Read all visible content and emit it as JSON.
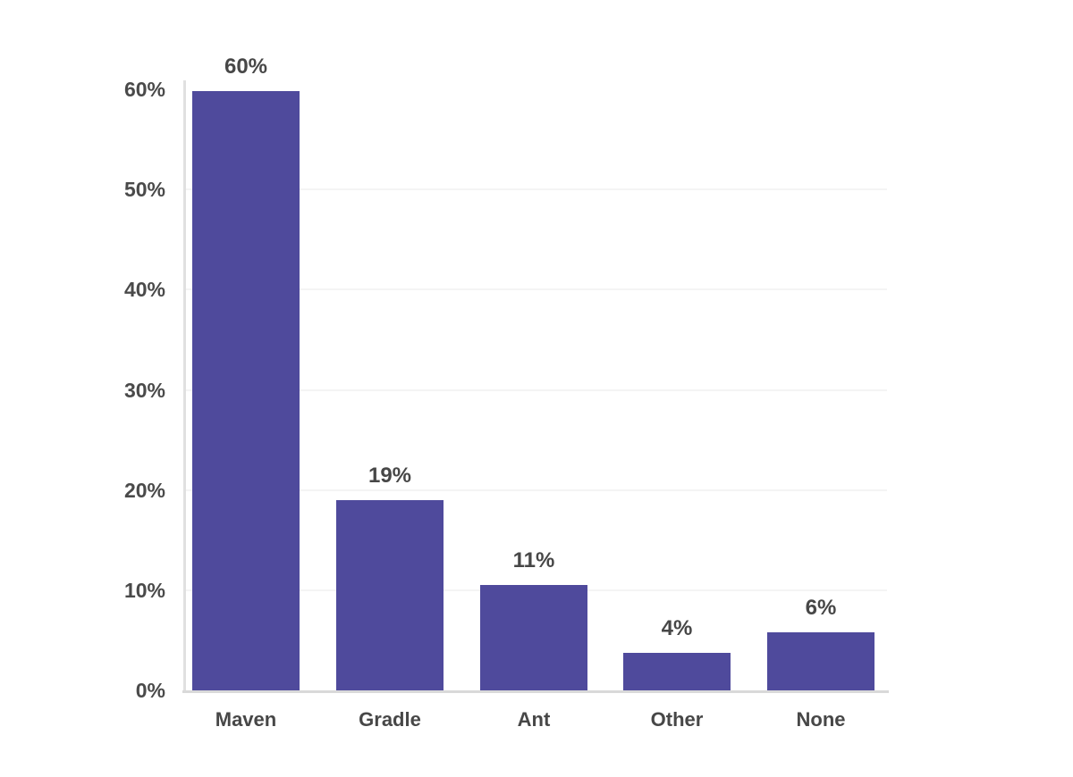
{
  "page": {
    "background_color": "#ffffff"
  },
  "chart_data": {
    "type": "bar",
    "title": "",
    "xlabel": "",
    "ylabel": "",
    "categories": [
      "Maven",
      "Gradle",
      "Ant",
      "Other",
      "None"
    ],
    "values": [
      60,
      19,
      11,
      4,
      6
    ],
    "value_labels": [
      "60%",
      "19%",
      "11%",
      "4%",
      "6%"
    ],
    "bar_rendered_heights_pct": [
      59.8,
      19,
      10.5,
      3.7,
      5.8
    ],
    "ylim": [
      0,
      60
    ],
    "y_ticks": [
      {
        "value": 0,
        "label": "0%"
      },
      {
        "value": 10,
        "label": "10%"
      },
      {
        "value": 20,
        "label": "20%"
      },
      {
        "value": 30,
        "label": "30%"
      },
      {
        "value": 40,
        "label": "40%"
      },
      {
        "value": 50,
        "label": "50%"
      },
      {
        "value": 60,
        "label": "60%"
      }
    ],
    "gridlines": {
      "horizontal_at": [
        10,
        20,
        30,
        40,
        50
      ],
      "vertical": false
    },
    "legend": {
      "visible": false
    },
    "colors": {
      "bar": "#4f4a9c",
      "tick_label": "#4a4a4a",
      "data_label": "#474747",
      "category_label": "#474747",
      "gridline": "#f4f4f4",
      "baseline": "#d9d9d9",
      "y_axis_line": "#e0e0e0",
      "background": "#ffffff"
    }
  }
}
